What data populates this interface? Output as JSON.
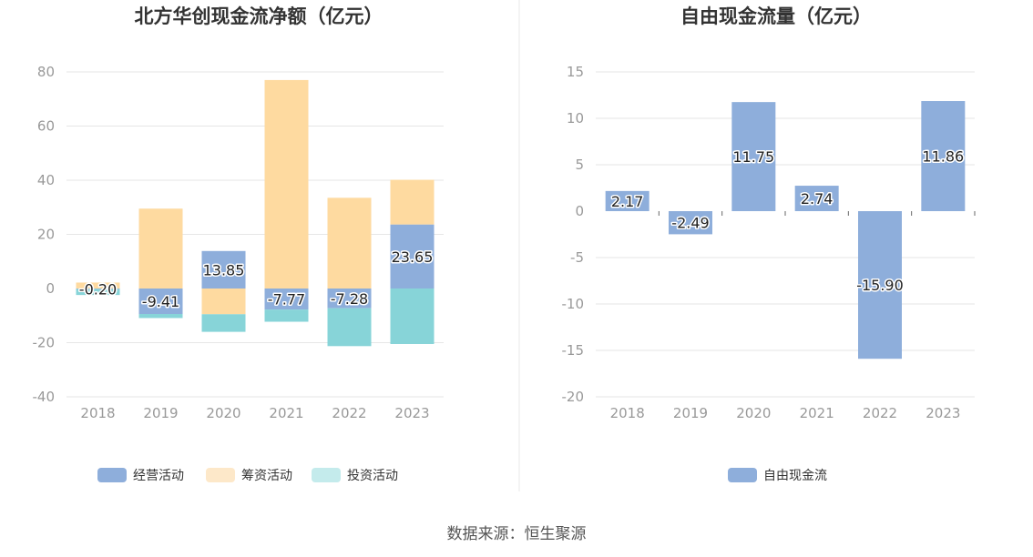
{
  "source": "数据来源：恒生聚源",
  "chart_data": [
    {
      "type": "bar",
      "stacked": true,
      "title": "北方华创现金流净额（亿元）",
      "categories": [
        "2018",
        "2019",
        "2020",
        "2021",
        "2022",
        "2023"
      ],
      "ylim": [
        -40,
        80
      ],
      "yticks": [
        -40,
        -20,
        0,
        20,
        40,
        60,
        80
      ],
      "grid": true,
      "legend_position": "bottom",
      "series": [
        {
          "name": "经营活动",
          "color": "#8eaedb",
          "values": [
            -0.2,
            -9.41,
            13.85,
            -7.77,
            -7.28,
            23.65
          ]
        },
        {
          "name": "筹资活动",
          "color": "#fedaa0",
          "values": [
            2.2,
            29.5,
            -9.5,
            77.0,
            33.5,
            16.5
          ]
        },
        {
          "name": "投资活动",
          "color": "#87d4d8",
          "values": [
            -2.2,
            -1.5,
            -6.5,
            -4.5,
            -14.0,
            -20.5
          ]
        }
      ],
      "data_labels": [
        "-0.20",
        "-9.41",
        "13.85",
        "-7.77",
        "-7.28",
        "23.65"
      ],
      "legend_colors": [
        "#8eaedb",
        "#fde8c9",
        "#c4ebec"
      ]
    },
    {
      "type": "bar",
      "title": "自由现金流量（亿元）",
      "categories": [
        "2018",
        "2019",
        "2020",
        "2021",
        "2022",
        "2023"
      ],
      "ylim": [
        -20,
        15
      ],
      "yticks": [
        -20,
        -15,
        -10,
        -5,
        0,
        5,
        10,
        15
      ],
      "grid": true,
      "legend_position": "bottom",
      "series": [
        {
          "name": "自由现金流",
          "color": "#8eaedb",
          "values": [
            2.17,
            -2.49,
            11.75,
            2.74,
            -15.9,
            11.86
          ]
        }
      ],
      "data_labels": [
        "2.17",
        "-2.49",
        "11.75",
        "2.74",
        "-15.90",
        "11.86"
      ]
    }
  ]
}
